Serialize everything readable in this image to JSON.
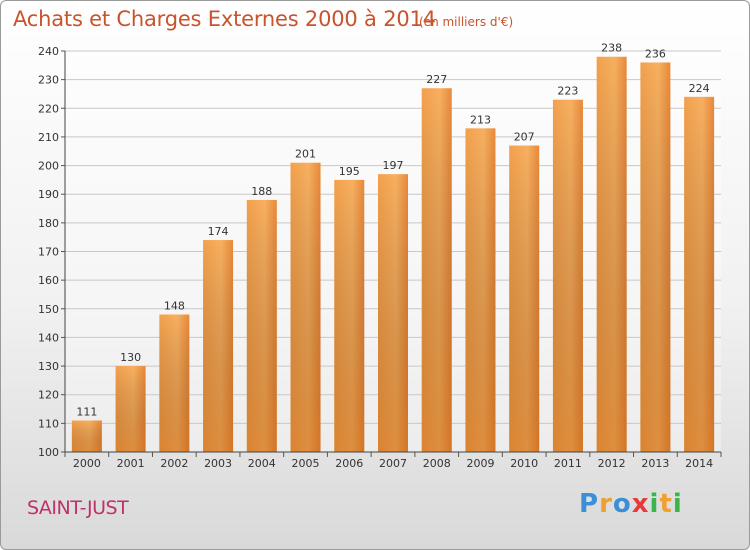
{
  "chart_data": {
    "type": "bar",
    "title": "Achats et Charges Externes 2000 à 2014",
    "subtitle": "(en milliers d'€)",
    "categories": [
      "2000",
      "2001",
      "2002",
      "2003",
      "2004",
      "2005",
      "2006",
      "2007",
      "2008",
      "2009",
      "2010",
      "2011",
      "2012",
      "2013",
      "2014"
    ],
    "values": [
      111,
      130,
      148,
      174,
      188,
      201,
      195,
      197,
      227,
      213,
      207,
      223,
      238,
      236,
      224
    ],
    "ylim": [
      100,
      240
    ],
    "yticks": [
      100,
      110,
      120,
      130,
      140,
      150,
      160,
      170,
      180,
      190,
      200,
      210,
      220,
      230,
      240
    ],
    "grid": true,
    "bar_color": "#f0953f"
  },
  "location": "SAINT-JUST",
  "logo": {
    "letters": [
      {
        "ch": "P",
        "color": "#3a8fd6"
      },
      {
        "ch": "r",
        "color": "#f0a030"
      },
      {
        "ch": "o",
        "color": "#3a8fd6"
      },
      {
        "ch": "x",
        "color": "#e83a3a"
      },
      {
        "ch": "i",
        "color": "#3ab54a"
      },
      {
        "ch": "t",
        "color": "#f0a030"
      },
      {
        "ch": "i",
        "color": "#3ab54a"
      }
    ]
  }
}
